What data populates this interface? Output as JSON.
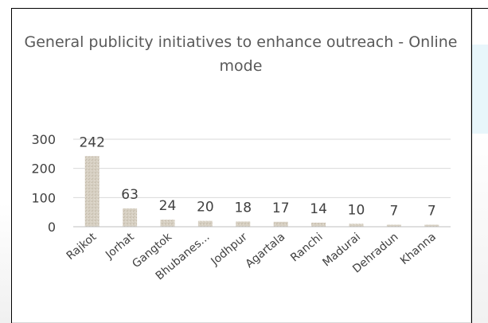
{
  "chart_data": {
    "type": "bar",
    "title": "General publicity initiatives to enhance outreach - Online mode",
    "categories": [
      "Rajkot",
      "Jorhat",
      "Gangtok",
      "Bhubanes...",
      "Jodhpur",
      "Agartala",
      "Ranchi",
      "Madurai",
      "Dehradun",
      "Khanna"
    ],
    "values": [
      242,
      63,
      24,
      20,
      18,
      17,
      14,
      10,
      7,
      7
    ],
    "data_labels": [
      "242",
      "63",
      "24",
      "20",
      "18",
      "17",
      "14",
      "10",
      "7",
      "7"
    ],
    "y_ticks": [
      0,
      100,
      200,
      300
    ],
    "y_tick_labels": [
      "0",
      "100",
      "200",
      "300"
    ],
    "ylim": [
      0,
      300
    ],
    "xlabel": "",
    "ylabel": "",
    "grid": true,
    "legend": "none",
    "colors": {
      "bar": "#d9d2c5",
      "grid": "#d9d9d9",
      "title": "#595959",
      "text": "#404040"
    }
  }
}
